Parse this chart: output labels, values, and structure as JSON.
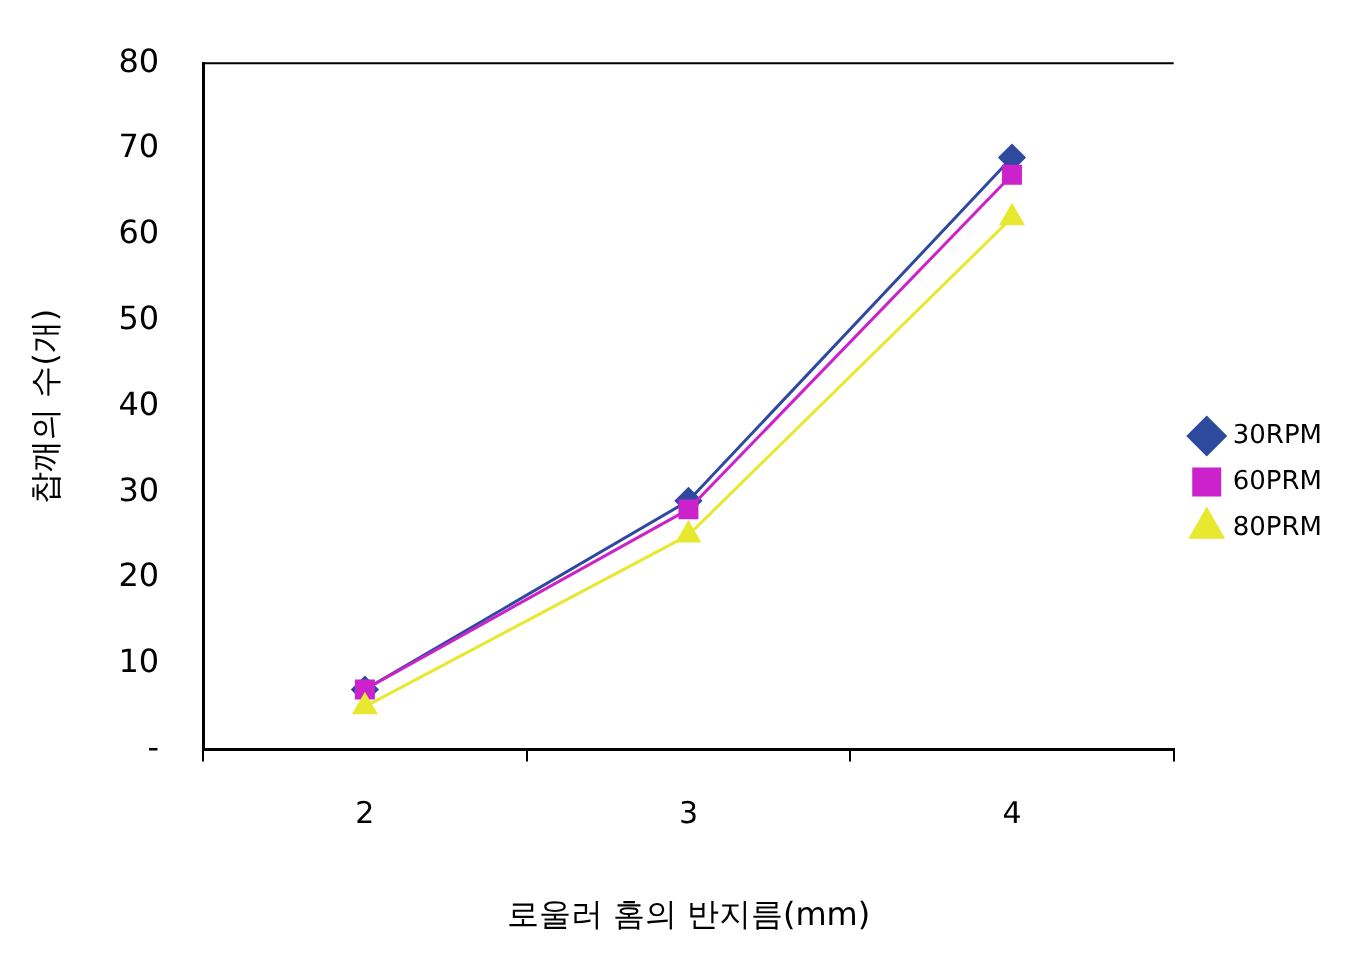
{
  "chart_data": {
    "type": "line",
    "xlabel": "로울러 홈의 반지름(mm)",
    "ylabel": "찹깨의 수(개)",
    "categories": [
      "2",
      "3",
      "4"
    ],
    "series": [
      {
        "name": "30RPM",
        "color": "#2e4a9e",
        "values": [
          7,
          29,
          69
        ],
        "marker": "diamond"
      },
      {
        "name": "60PRM",
        "color": "#cc22cc",
        "values": [
          7,
          28,
          67
        ],
        "marker": "square"
      },
      {
        "name": "80PRM",
        "color": "#e8e830",
        "values": [
          5,
          25,
          62
        ],
        "marker": "triangle"
      }
    ],
    "ylim": [
      0,
      80
    ],
    "yticks": [
      {
        "value": 0,
        "label": "-"
      },
      10,
      20,
      30,
      40,
      50,
      60,
      70,
      80
    ],
    "grid": false,
    "legend": "right",
    "line_style": "solid"
  }
}
